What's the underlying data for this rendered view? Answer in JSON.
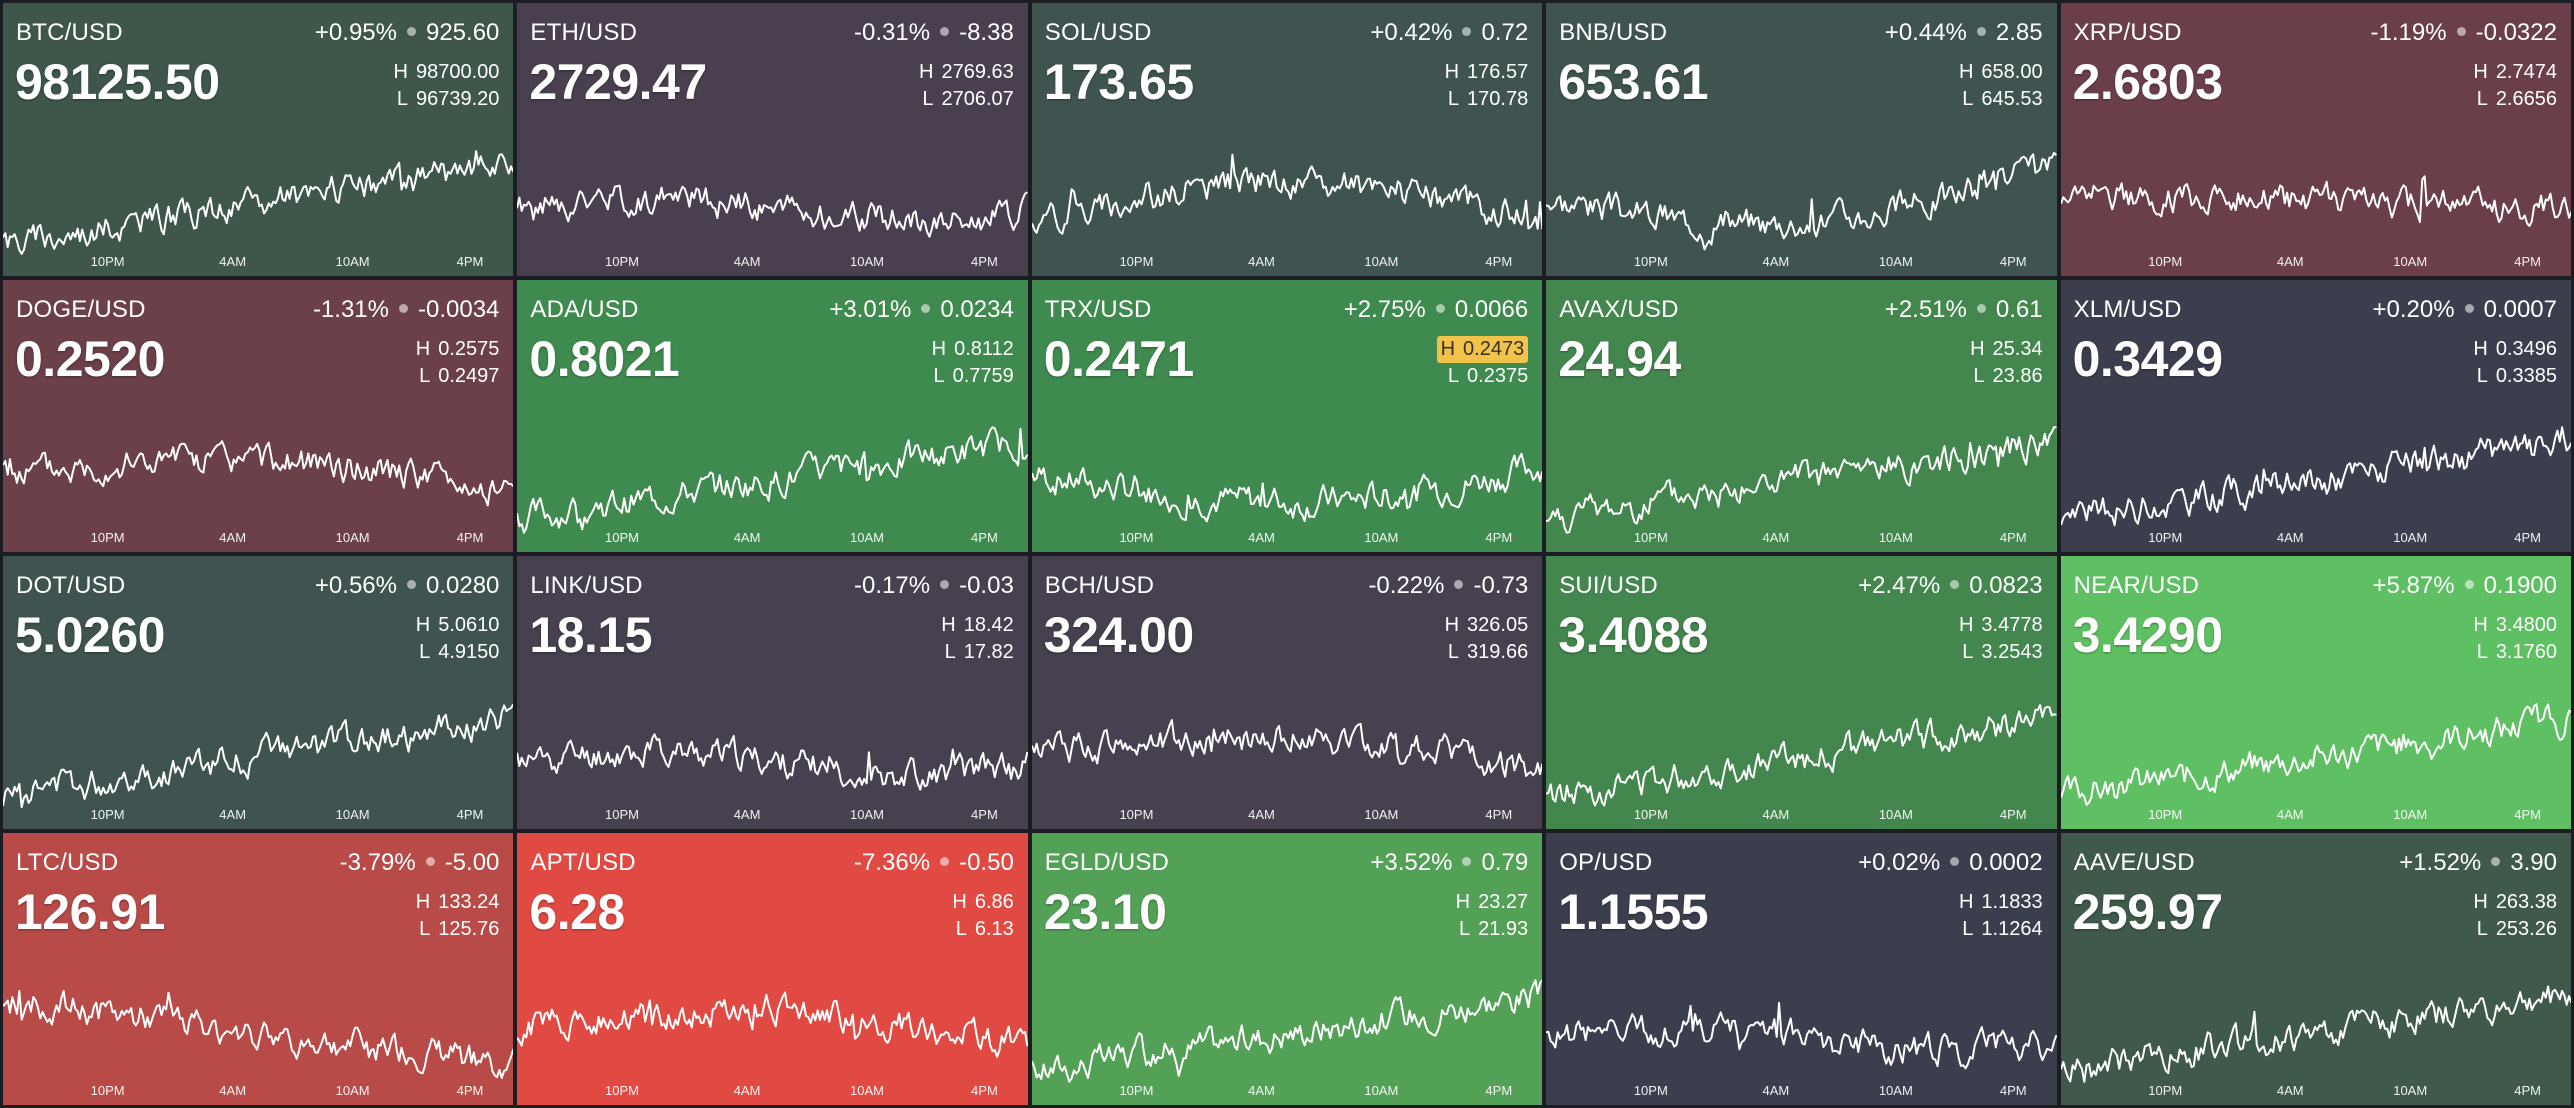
{
  "time_labels": [
    "10PM",
    "4AM",
    "10AM",
    "4PM"
  ],
  "tiles": [
    {
      "pair": "BTC/USD",
      "pct": "+0.95%",
      "abs": "925.60",
      "price": "98125.50",
      "high": "98700.00",
      "low": "96739.20",
      "color": "#3e574a",
      "trend": "up"
    },
    {
      "pair": "ETH/USD",
      "pct": "-0.31%",
      "abs": "-8.38",
      "price": "2729.47",
      "high": "2769.63",
      "low": "2706.07",
      "color": "#4a3f4f",
      "trend": "flat"
    },
    {
      "pair": "SOL/USD",
      "pct": "+0.42%",
      "abs": "0.72",
      "price": "173.65",
      "high": "176.57",
      "low": "170.78",
      "color": "#3f5450",
      "trend": "hump"
    },
    {
      "pair": "BNB/USD",
      "pct": "+0.44%",
      "abs": "2.85",
      "price": "653.61",
      "high": "658.00",
      "low": "645.53",
      "color": "#3f5450",
      "trend": "dip-up"
    },
    {
      "pair": "XRP/USD",
      "pct": "-1.19%",
      "abs": "-0.0322",
      "price": "2.6803",
      "high": "2.7474",
      "low": "2.6656",
      "color": "#6b3f4a",
      "trend": "down-spike"
    },
    {
      "pair": "DOGE/USD",
      "pct": "-1.31%",
      "abs": "-0.0034",
      "price": "0.2520",
      "high": "0.2575",
      "low": "0.2497",
      "color": "#6b4048",
      "trend": "hump-down"
    },
    {
      "pair": "ADA/USD",
      "pct": "+3.01%",
      "abs": "0.0234",
      "price": "0.8021",
      "high": "0.8112",
      "low": "0.7759",
      "color": "#3f8a4e",
      "trend": "up"
    },
    {
      "pair": "TRX/USD",
      "pct": "+2.75%",
      "abs": "0.0066",
      "price": "0.2471",
      "high": "0.2473",
      "low": "0.2375",
      "color": "#3f8a4e",
      "trend": "valley-up",
      "high_flag": true
    },
    {
      "pair": "AVAX/USD",
      "pct": "+2.51%",
      "abs": "0.61",
      "price": "24.94",
      "high": "25.34",
      "low": "23.86",
      "color": "#43864e",
      "trend": "up"
    },
    {
      "pair": "XLM/USD",
      "pct": "+0.20%",
      "abs": "0.0007",
      "price": "0.3429",
      "high": "0.3496",
      "low": "0.3385",
      "color": "#3b3f4d",
      "trend": "up"
    },
    {
      "pair": "DOT/USD",
      "pct": "+0.56%",
      "abs": "0.0280",
      "price": "5.0260",
      "high": "5.0610",
      "low": "4.9150",
      "color": "#3f5450",
      "trend": "up"
    },
    {
      "pair": "LINK/USD",
      "pct": "-0.17%",
      "abs": "-0.03",
      "price": "18.15",
      "high": "18.42",
      "low": "17.82",
      "color": "#47404f",
      "trend": "flat"
    },
    {
      "pair": "BCH/USD",
      "pct": "-0.22%",
      "abs": "-0.73",
      "price": "324.00",
      "high": "326.05",
      "low": "319.66",
      "color": "#47404f",
      "trend": "hump-down"
    },
    {
      "pair": "SUI/USD",
      "pct": "+2.47%",
      "abs": "0.0823",
      "price": "3.4088",
      "high": "3.4778",
      "low": "3.2543",
      "color": "#43864e",
      "trend": "up"
    },
    {
      "pair": "NEAR/USD",
      "pct": "+5.87%",
      "abs": "0.1900",
      "price": "3.4290",
      "high": "3.4800",
      "low": "3.1760",
      "color": "#5ec062",
      "trend": "up"
    },
    {
      "pair": "LTC/USD",
      "pct": "-3.79%",
      "abs": "-5.00",
      "price": "126.91",
      "high": "133.24",
      "low": "125.76",
      "color": "#b84a47",
      "trend": "down"
    },
    {
      "pair": "APT/USD",
      "pct": "-7.36%",
      "abs": "-0.50",
      "price": "6.28",
      "high": "6.86",
      "low": "6.13",
      "color": "#e14a43",
      "trend": "hump-down"
    },
    {
      "pair": "EGLD/USD",
      "pct": "+3.52%",
      "abs": "0.79",
      "price": "23.10",
      "high": "23.27",
      "low": "21.93",
      "color": "#53a157",
      "trend": "up"
    },
    {
      "pair": "OP/USD",
      "pct": "+0.02%",
      "abs": "0.0002",
      "price": "1.1555",
      "high": "1.1833",
      "low": "1.1264",
      "color": "#3b3f4d",
      "trend": "flat"
    },
    {
      "pair": "AAVE/USD",
      "pct": "+1.52%",
      "abs": "3.90",
      "price": "259.97",
      "high": "263.38",
      "low": "253.26",
      "color": "#3f5a4a",
      "trend": "up"
    }
  ]
}
